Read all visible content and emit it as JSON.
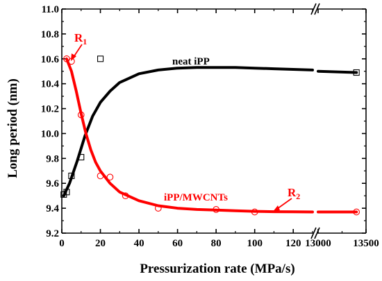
{
  "chart_data": {
    "type": "scatter",
    "title": "",
    "xlabel": "Pressurization rate (MPa/s)",
    "ylabel": "Long period (nm)",
    "ylim": [
      9.2,
      11.0
    ],
    "x_segments": [
      {
        "range": [
          0,
          130
        ],
        "ticks": [
          "0",
          "20",
          "40",
          "60",
          "80",
          "100",
          "120"
        ]
      },
      {
        "range": [
          13000,
          13500
        ],
        "ticks": [
          "13000",
          "13500"
        ]
      }
    ],
    "y_ticks": [
      "9.2",
      "9.4",
      "9.6",
      "9.8",
      "10.0",
      "10.2",
      "10.4",
      "10.6",
      "10.8",
      "11.0"
    ],
    "axis_break": true,
    "grid": false,
    "series": [
      {
        "name": "neat iPP",
        "marker": "square",
        "color": "#000000",
        "points": [
          {
            "x": 1,
            "y": 9.51
          },
          {
            "x": 2.5,
            "y": 9.53
          },
          {
            "x": 5,
            "y": 9.66
          },
          {
            "x": 10,
            "y": 9.81
          },
          {
            "x": 20,
            "y": 10.6
          },
          {
            "x": 13400,
            "y": 10.49
          }
        ],
        "fit_curve": [
          {
            "x": 1,
            "y": 9.5
          },
          {
            "x": 4,
            "y": 9.6
          },
          {
            "x": 8,
            "y": 9.78
          },
          {
            "x": 12,
            "y": 9.98
          },
          {
            "x": 16,
            "y": 10.14
          },
          {
            "x": 20,
            "y": 10.25
          },
          {
            "x": 25,
            "y": 10.34
          },
          {
            "x": 30,
            "y": 10.41
          },
          {
            "x": 40,
            "y": 10.48
          },
          {
            "x": 50,
            "y": 10.51
          },
          {
            "x": 60,
            "y": 10.525
          },
          {
            "x": 70,
            "y": 10.53
          },
          {
            "x": 80,
            "y": 10.53
          },
          {
            "x": 90,
            "y": 10.53
          },
          {
            "x": 100,
            "y": 10.525
          },
          {
            "x": 110,
            "y": 10.52
          },
          {
            "x": 120,
            "y": 10.515
          },
          {
            "x": 130,
            "y": 10.51
          },
          {
            "x": 13000,
            "y": 10.5
          },
          {
            "x": 13400,
            "y": 10.49
          }
        ]
      },
      {
        "name": "iPP/MWCNTs",
        "marker": "circle",
        "color": "#ff0000",
        "points": [
          {
            "x": 2.5,
            "y": 10.6
          },
          {
            "x": 5,
            "y": 10.58
          },
          {
            "x": 10,
            "y": 10.15
          },
          {
            "x": 20,
            "y": 9.66
          },
          {
            "x": 25,
            "y": 9.65
          },
          {
            "x": 33,
            "y": 9.5
          },
          {
            "x": 50,
            "y": 9.4
          },
          {
            "x": 80,
            "y": 9.39
          },
          {
            "x": 100,
            "y": 9.37
          },
          {
            "x": 13400,
            "y": 9.37
          }
        ],
        "fit_curve": [
          {
            "x": 2.5,
            "y": 10.6
          },
          {
            "x": 5,
            "y": 10.5
          },
          {
            "x": 7.5,
            "y": 10.34
          },
          {
            "x": 10,
            "y": 10.16
          },
          {
            "x": 12.5,
            "y": 10.0
          },
          {
            "x": 15,
            "y": 9.87
          },
          {
            "x": 17.5,
            "y": 9.77
          },
          {
            "x": 20,
            "y": 9.7
          },
          {
            "x": 25,
            "y": 9.6
          },
          {
            "x": 30,
            "y": 9.53
          },
          {
            "x": 40,
            "y": 9.46
          },
          {
            "x": 50,
            "y": 9.42
          },
          {
            "x": 60,
            "y": 9.4
          },
          {
            "x": 70,
            "y": 9.39
          },
          {
            "x": 80,
            "y": 9.385
          },
          {
            "x": 90,
            "y": 9.38
          },
          {
            "x": 100,
            "y": 9.375
          },
          {
            "x": 110,
            "y": 9.372
          },
          {
            "x": 120,
            "y": 9.371
          },
          {
            "x": 130,
            "y": 9.37
          },
          {
            "x": 13000,
            "y": 9.37
          },
          {
            "x": 13400,
            "y": 9.37
          }
        ]
      }
    ],
    "annotations": {
      "neat_label": "neat iPP",
      "cnt_label": "iPP/MWCNTs",
      "r1": {
        "main": "R",
        "sub": "1"
      },
      "r2": {
        "main": "R",
        "sub": "2"
      }
    }
  }
}
